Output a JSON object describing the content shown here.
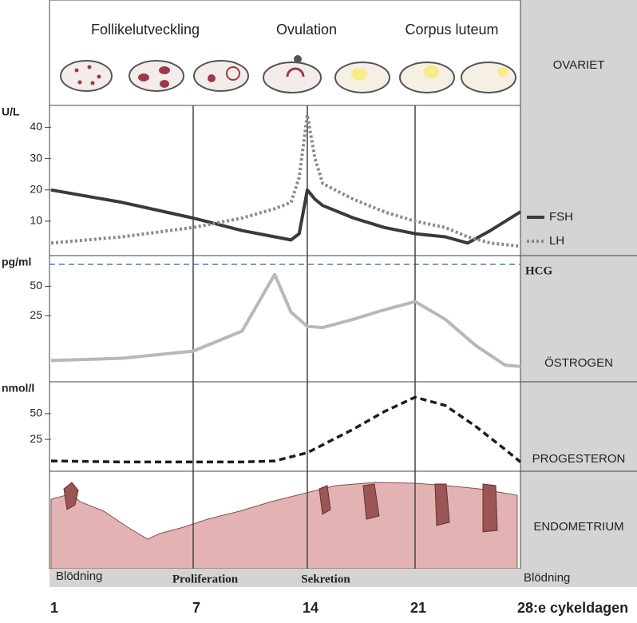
{
  "phases": {
    "follicle": "Follikelutveckling",
    "ovulation": "Ovulation",
    "corpus_luteum": "Corpus luteum"
  },
  "panel_labels": {
    "ovary": "OVARIET",
    "endometrium": "ENDOMETRIUM"
  },
  "bleeding": [
    "Blödning",
    "Blödning"
  ],
  "endometrium_phases": {
    "proliferation": "Proliferation",
    "secretion": "Sekretion"
  },
  "hcg": "HCG",
  "chart_data": [
    {
      "type": "line",
      "y_label": "U/L",
      "ylim": [
        -1,
        47
      ],
      "yticks": [
        10,
        20,
        30,
        40
      ],
      "xlim": [
        1,
        28
      ],
      "x": [
        1,
        4,
        7,
        10,
        12,
        13,
        13.5,
        14,
        14.5,
        15,
        17,
        19,
        21,
        23,
        24.5,
        26,
        28
      ],
      "legend": "right",
      "series": [
        {
          "name": "FSH",
          "color": "#3a3a3a",
          "style": "solid",
          "values": [
            20,
            16,
            11,
            7,
            5,
            4,
            6,
            20,
            17,
            15,
            11,
            8,
            6,
            5,
            3,
            7,
            13
          ]
        },
        {
          "name": "LH",
          "color": "#8a8a8a",
          "style": "dotted",
          "values": [
            3,
            5,
            8,
            11,
            14,
            16,
            24,
            44,
            30,
            22,
            17,
            13,
            10,
            8,
            5,
            3,
            2
          ]
        }
      ]
    },
    {
      "type": "line",
      "y_label": "pg/ml",
      "ylim": [
        -31,
        76
      ],
      "yticks": [
        25,
        50
      ],
      "xlim": [
        1,
        28
      ],
      "x": [
        1,
        4,
        7,
        10,
        12,
        13,
        14,
        15,
        17,
        19,
        21,
        23,
        25,
        27,
        28
      ],
      "series": [
        {
          "name": "ÖSTROGEN",
          "color": "#b8b8b8",
          "style": "solid",
          "values": [
            -13,
            -11,
            -5,
            12,
            60,
            28,
            16,
            15,
            22,
            30,
            37,
            22,
            0,
            -17,
            -18
          ]
        }
      ]
    },
    {
      "type": "line",
      "y_label": "nmol/l",
      "ylim": [
        -6,
        81
      ],
      "yticks": [
        25,
        50
      ],
      "xlim": [
        1,
        28
      ],
      "x": [
        1,
        4,
        7,
        10,
        12,
        14,
        17,
        19,
        21,
        23,
        25,
        27,
        28
      ],
      "xticks": [
        1,
        7,
        14,
        21,
        {
          "value": 28,
          "label": "28:e cykeldagen"
        }
      ],
      "series": [
        {
          "name": "PROGESTERON",
          "color": "#1e1e1e",
          "style": "dashed",
          "values": [
            4,
            3,
            3,
            3,
            4,
            12,
            35,
            52,
            66,
            58,
            38,
            15,
            3
          ]
        }
      ]
    }
  ]
}
